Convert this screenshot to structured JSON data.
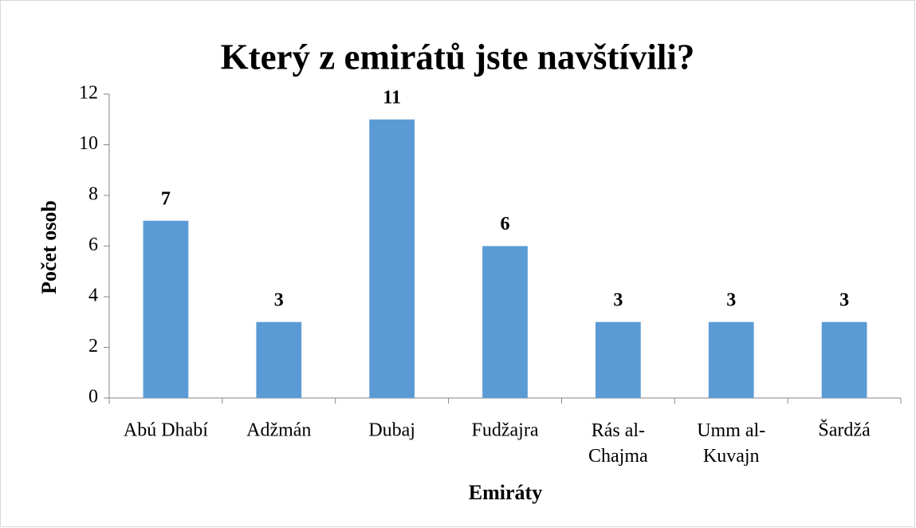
{
  "chart_data": {
    "type": "bar",
    "title": "Který z emirátů jste navštívili?",
    "x_label": "Emiráty",
    "y_label": "Počet osob",
    "categories": [
      "Abú Dhabí",
      "Adžmán",
      "Dubaj",
      "Fudžajra",
      "Rás al-\nChajma",
      "Umm al-\nKuvajn",
      "Šardžá"
    ],
    "values": [
      7,
      3,
      11,
      6,
      3,
      3,
      3
    ],
    "color": "#5b9bd5",
    "ylim": [
      0,
      12
    ],
    "yticks": [
      0,
      2,
      4,
      6,
      8,
      10,
      12
    ],
    "grid": false
  }
}
